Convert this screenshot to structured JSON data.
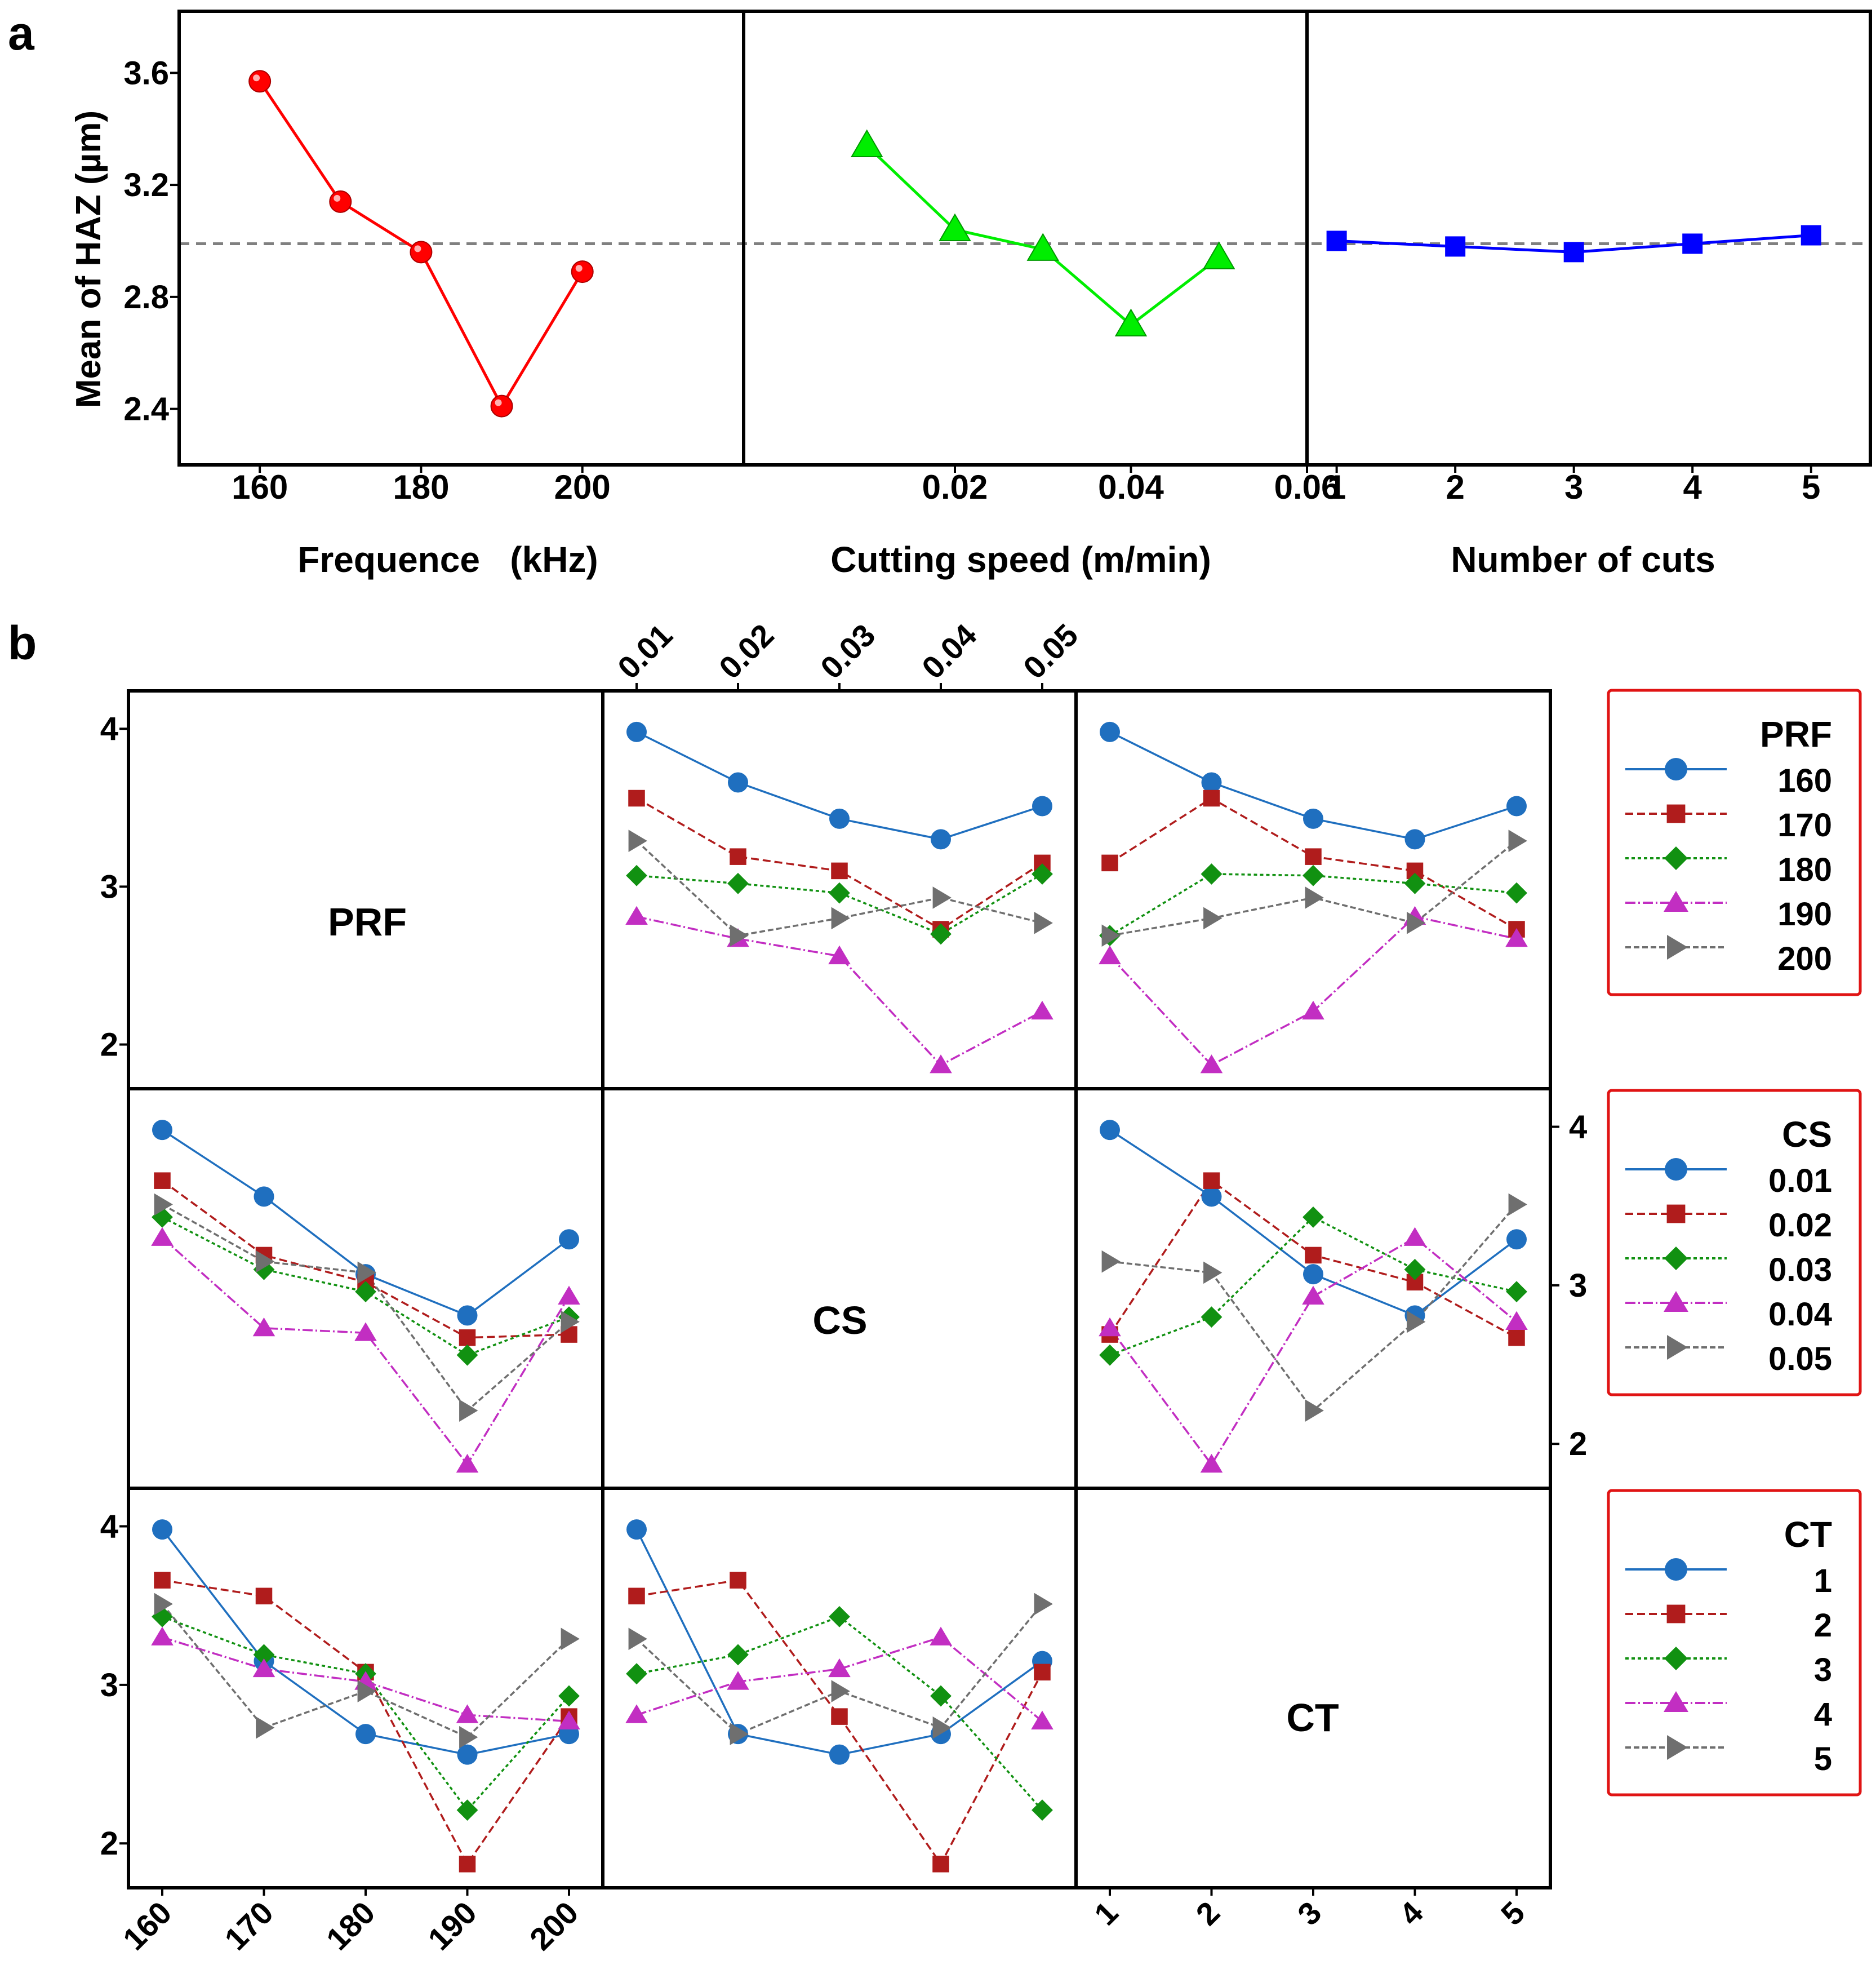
{
  "chart_data": [
    {
      "panel_label": "a",
      "type": "line",
      "ylabel": "Mean of HAZ (µm)",
      "ylim": [
        2.2,
        3.82
      ],
      "yticks": [
        "3.6",
        "3.2",
        "2.8",
        "2.4"
      ],
      "reference_line": 2.99,
      "colors": {
        "frequency": "#ff0000",
        "speed": "#00ee00",
        "cuts": "#0000ff"
      },
      "subplots": [
        {
          "xlabel": "Frequence   (kHz)",
          "xticks": [
            "160",
            "180",
            "200"
          ],
          "xlim": [
            150,
            220
          ],
          "marker": "sphere",
          "x": [
            160,
            170,
            180,
            190,
            200
          ],
          "y": [
            3.57,
            3.14,
            2.96,
            2.41,
            2.89
          ]
        },
        {
          "xlabel": "Cutting speed (m/min)",
          "xticks": [
            "0.02",
            "0.04",
            "0.06"
          ],
          "xlim": [
            -0.004,
            0.06
          ],
          "marker": "triangle",
          "x": [
            0.01,
            0.02,
            0.03,
            0.04,
            0.05
          ],
          "y": [
            3.34,
            3.04,
            2.97,
            2.7,
            2.94
          ]
        },
        {
          "xlabel": "Number of cuts",
          "xticks": [
            "1",
            "2",
            "3",
            "4",
            "5"
          ],
          "xlim": [
            0.75,
            5.5
          ],
          "marker": "square",
          "x": [
            1,
            2,
            3,
            4,
            5
          ],
          "y": [
            3.0,
            2.98,
            2.96,
            2.99,
            3.02
          ]
        }
      ]
    },
    {
      "panel_label": "b",
      "type": "line",
      "ylim": [
        1.72,
        4.24
      ],
      "yticks": [
        "4",
        "3",
        "2"
      ],
      "factor_labels": [
        "PRF",
        "CS",
        "CT"
      ],
      "xticklabels": {
        "PRF": [
          "160",
          "170",
          "180",
          "190",
          "200"
        ],
        "CS": [
          "0.01",
          "0.02",
          "0.03",
          "0.04",
          "0.05"
        ],
        "CT": [
          "1",
          "2",
          "3",
          "4",
          "5"
        ]
      },
      "series_style": {
        "colors": [
          "#1f6fbf",
          "#b01c1c",
          "#119111",
          "#c22ec2",
          "#6f6f6f"
        ],
        "markers": [
          "circle",
          "square",
          "diamond",
          "triangle-up",
          "triangle-right"
        ],
        "dashes": [
          "",
          "14 7",
          "6 5",
          "18 5 3 5",
          "10 5"
        ]
      },
      "legends": [
        {
          "title": "PRF",
          "entries": [
            "160",
            "170",
            "180",
            "190",
            "200"
          ]
        },
        {
          "title": "CS",
          "entries": [
            "0.01",
            "0.02",
            "0.03",
            "0.04",
            "0.05"
          ]
        },
        {
          "title": "CT",
          "entries": [
            "1",
            "2",
            "3",
            "4",
            "5"
          ]
        }
      ],
      "cells": [
        {
          "position": "row1-col2",
          "x_factor": "CS",
          "trace_factor": "PRF",
          "series": [
            {
              "name": "160",
              "values": [
                3.98,
                3.66,
                3.43,
                3.3,
                3.51
              ]
            },
            {
              "name": "170",
              "values": [
                3.56,
                3.19,
                3.1,
                2.73,
                3.15
              ]
            },
            {
              "name": "180",
              "values": [
                3.07,
                3.02,
                2.96,
                2.7,
                3.08
              ]
            },
            {
              "name": "190",
              "values": [
                2.81,
                2.67,
                2.56,
                1.87,
                2.21
              ]
            },
            {
              "name": "200",
              "values": [
                3.29,
                2.69,
                2.8,
                2.93,
                2.77
              ]
            }
          ]
        },
        {
          "position": "row1-col3",
          "x_factor": "CT",
          "trace_factor": "PRF",
          "series": [
            {
              "name": "160",
              "values": [
                3.98,
                3.66,
                3.43,
                3.3,
                3.51
              ]
            },
            {
              "name": "170",
              "values": [
                3.15,
                3.56,
                3.19,
                3.1,
                2.73
              ]
            },
            {
              "name": "180",
              "values": [
                2.69,
                3.08,
                3.07,
                3.02,
                2.96
              ]
            },
            {
              "name": "190",
              "values": [
                2.56,
                1.87,
                2.21,
                2.81,
                2.67
              ]
            },
            {
              "name": "200",
              "values": [
                2.69,
                2.8,
                2.93,
                2.77,
                3.29
              ]
            }
          ]
        },
        {
          "position": "row2-col1",
          "x_factor": "PRF",
          "trace_factor": "CS",
          "series": [
            {
              "name": "0.01",
              "values": [
                3.98,
                3.56,
                3.07,
                2.81,
                3.29
              ]
            },
            {
              "name": "0.02",
              "values": [
                3.66,
                3.19,
                3.02,
                2.67,
                2.69
              ]
            },
            {
              "name": "0.03",
              "values": [
                3.43,
                3.1,
                2.96,
                2.56,
                2.8
              ]
            },
            {
              "name": "0.04",
              "values": [
                3.3,
                2.73,
                2.7,
                1.87,
                2.93
              ]
            },
            {
              "name": "0.05",
              "values": [
                3.51,
                3.15,
                3.08,
                2.21,
                2.77
              ]
            }
          ]
        },
        {
          "position": "row2-col3",
          "x_factor": "CT",
          "trace_factor": "CS",
          "series": [
            {
              "name": "0.01",
              "values": [
                3.98,
                3.56,
                3.07,
                2.81,
                3.29
              ]
            },
            {
              "name": "0.02",
              "values": [
                2.69,
                3.66,
                3.19,
                3.02,
                2.67
              ]
            },
            {
              "name": "0.03",
              "values": [
                2.56,
                2.8,
                3.43,
                3.1,
                2.96
              ]
            },
            {
              "name": "0.04",
              "values": [
                2.73,
                1.87,
                2.93,
                3.3,
                2.77
              ]
            },
            {
              "name": "0.05",
              "values": [
                3.15,
                3.08,
                2.21,
                2.77,
                3.51
              ]
            }
          ]
        },
        {
          "position": "row3-col1",
          "x_factor": "PRF",
          "trace_factor": "CT",
          "series": [
            {
              "name": "1",
              "values": [
                3.98,
                3.15,
                2.69,
                2.56,
                2.69
              ]
            },
            {
              "name": "2",
              "values": [
                3.66,
                3.56,
                3.08,
                1.87,
                2.8
              ]
            },
            {
              "name": "3",
              "values": [
                3.43,
                3.19,
                3.07,
                2.21,
                2.93
              ]
            },
            {
              "name": "4",
              "values": [
                3.3,
                3.1,
                3.02,
                2.81,
                2.77
              ]
            },
            {
              "name": "5",
              "values": [
                3.51,
                2.73,
                2.96,
                2.67,
                3.29
              ]
            }
          ]
        },
        {
          "position": "row3-col2",
          "x_factor": "CS",
          "trace_factor": "CT",
          "series": [
            {
              "name": "1",
              "values": [
                3.98,
                2.69,
                2.56,
                2.69,
                3.15
              ]
            },
            {
              "name": "2",
              "values": [
                3.56,
                3.66,
                2.8,
                1.87,
                3.08
              ]
            },
            {
              "name": "3",
              "values": [
                3.07,
                3.19,
                3.43,
                2.93,
                2.21
              ]
            },
            {
              "name": "4",
              "values": [
                2.81,
                3.02,
                3.1,
                3.3,
                2.77
              ]
            },
            {
              "name": "5",
              "values": [
                3.29,
                2.69,
                2.96,
                2.73,
                3.51
              ]
            }
          ]
        }
      ]
    }
  ]
}
